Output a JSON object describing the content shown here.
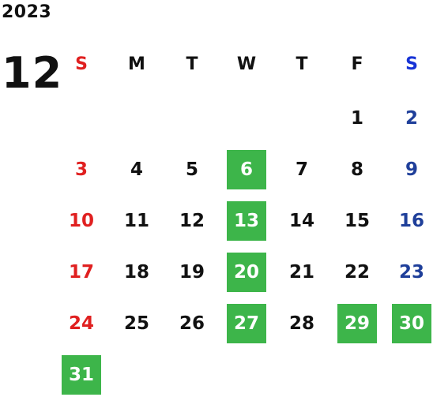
{
  "calendar": {
    "year": "2023",
    "month": "12",
    "weekdays": [
      "S",
      "M",
      "T",
      "W",
      "T",
      "F",
      "S"
    ],
    "highlight_color": "#3db54a",
    "sunday_color": "#e02020",
    "saturday_color": "#1f3f9a",
    "first_weekday_index": 5,
    "days": [
      {
        "n": "1"
      },
      {
        "n": "2"
      },
      {
        "n": "3"
      },
      {
        "n": "4"
      },
      {
        "n": "5"
      },
      {
        "n": "6",
        "highlight": true
      },
      {
        "n": "7"
      },
      {
        "n": "8"
      },
      {
        "n": "9"
      },
      {
        "n": "10"
      },
      {
        "n": "11"
      },
      {
        "n": "12"
      },
      {
        "n": "13",
        "highlight": true
      },
      {
        "n": "14"
      },
      {
        "n": "15"
      },
      {
        "n": "16"
      },
      {
        "n": "17"
      },
      {
        "n": "18"
      },
      {
        "n": "19"
      },
      {
        "n": "20",
        "highlight": true
      },
      {
        "n": "21"
      },
      {
        "n": "22"
      },
      {
        "n": "23"
      },
      {
        "n": "24"
      },
      {
        "n": "25"
      },
      {
        "n": "26"
      },
      {
        "n": "27",
        "highlight": true
      },
      {
        "n": "28"
      },
      {
        "n": "29",
        "highlight": true
      },
      {
        "n": "30",
        "highlight": true
      },
      {
        "n": "31",
        "highlight": true
      }
    ]
  }
}
